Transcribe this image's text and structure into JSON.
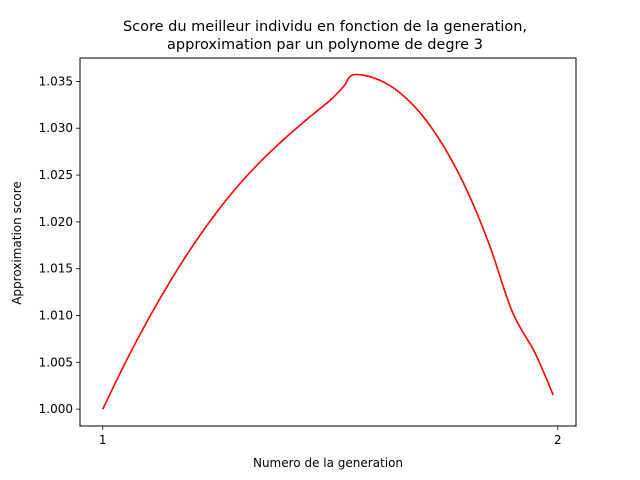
{
  "chart_data": {
    "type": "line",
    "title_line1": "Score du meilleur individu en fonction de la generation,",
    "title_line2": "approximation par un polynome de degre 3",
    "xlabel": "Numero de la generation",
    "ylabel": "Approximation score",
    "xlim": [
      0.95,
      2.04
    ],
    "ylim": [
      0.9982,
      1.0375
    ],
    "x_ticks": [
      1,
      2
    ],
    "x_tick_labels": [
      "1",
      "2"
    ],
    "y_ticks": [
      1.0,
      1.005,
      1.01,
      1.015,
      1.02,
      1.025,
      1.03,
      1.035
    ],
    "y_tick_labels": [
      "1.000",
      "1.005",
      "1.010",
      "1.015",
      "1.020",
      "1.025",
      "1.030",
      "1.035"
    ],
    "grid": false,
    "series": [
      {
        "color": "#ff0000",
        "x": [
          1.0,
          1.05,
          1.1,
          1.15,
          1.2,
          1.25,
          1.3,
          1.35,
          1.4,
          1.45,
          1.5,
          1.53,
          1.55,
          1.6,
          1.65,
          1.7,
          1.75,
          1.8,
          1.85,
          1.9,
          1.95,
          1.99
        ],
        "y": [
          1.0,
          1.005,
          1.0096,
          1.0138,
          1.0176,
          1.021,
          1.024,
          1.0266,
          1.0289,
          1.031,
          1.033,
          1.0345,
          1.0357,
          1.0353,
          1.0339,
          1.0315,
          1.028,
          1.0234,
          1.0175,
          1.0104,
          1.006,
          1.0015
        ]
      }
    ]
  }
}
